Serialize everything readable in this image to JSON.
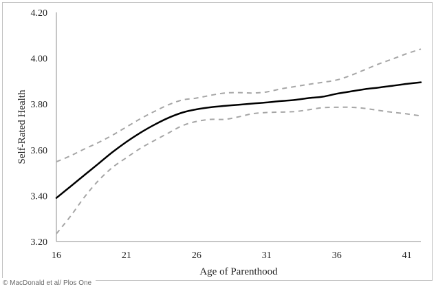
{
  "chart_data": {
    "type": "line",
    "xlabel": "Age of Parenthood",
    "ylabel": "Self-Rated Health",
    "xlim": [
      16,
      42
    ],
    "ylim": [
      3.2,
      4.2
    ],
    "xticks": [
      16,
      21,
      26,
      31,
      36,
      41
    ],
    "yticks": [
      "3.20",
      "3.40",
      "3.60",
      "3.80",
      "4.00",
      "4.20"
    ],
    "grid": false,
    "legend": "none",
    "series": [
      {
        "style": "solid",
        "color": "#000000",
        "x": [
          16,
          17,
          18,
          19,
          20,
          21,
          22,
          23,
          24,
          25,
          26,
          27,
          28,
          29,
          30,
          31,
          32,
          33,
          34,
          35,
          36,
          37,
          38,
          39,
          40,
          41,
          42
        ],
        "y": [
          3.39,
          3.44,
          3.49,
          3.54,
          3.59,
          3.635,
          3.675,
          3.71,
          3.74,
          3.763,
          3.777,
          3.786,
          3.792,
          3.797,
          3.802,
          3.807,
          3.813,
          3.818,
          3.826,
          3.832,
          3.845,
          3.855,
          3.865,
          3.872,
          3.88,
          3.888,
          3.895
        ]
      },
      {
        "style": "dashed",
        "color": "#a6a6a6",
        "x": [
          16,
          17,
          18,
          19,
          20,
          21,
          22,
          23,
          24,
          25,
          26,
          27,
          28,
          29,
          30,
          31,
          32,
          33,
          34,
          35,
          36,
          37,
          38,
          39,
          40,
          41,
          42
        ],
        "y": [
          3.548,
          3.574,
          3.604,
          3.632,
          3.664,
          3.7,
          3.736,
          3.768,
          3.797,
          3.818,
          3.826,
          3.838,
          3.848,
          3.85,
          3.848,
          3.853,
          3.866,
          3.876,
          3.886,
          3.895,
          3.905,
          3.925,
          3.95,
          3.975,
          3.997,
          4.02,
          4.04
        ]
      },
      {
        "style": "dashed",
        "color": "#a6a6a6",
        "x": [
          16,
          17,
          18,
          19,
          20,
          21,
          22,
          23,
          24,
          25,
          26,
          27,
          28,
          29,
          30,
          31,
          32,
          33,
          34,
          35,
          36,
          37,
          38,
          39,
          40,
          41,
          42
        ],
        "y": [
          3.234,
          3.31,
          3.394,
          3.466,
          3.523,
          3.566,
          3.607,
          3.641,
          3.674,
          3.706,
          3.724,
          3.733,
          3.733,
          3.744,
          3.758,
          3.763,
          3.765,
          3.767,
          3.775,
          3.784,
          3.786,
          3.786,
          3.781,
          3.772,
          3.764,
          3.757,
          3.748
        ]
      }
    ]
  },
  "credit": "© MacDonald et al/ Plos One"
}
